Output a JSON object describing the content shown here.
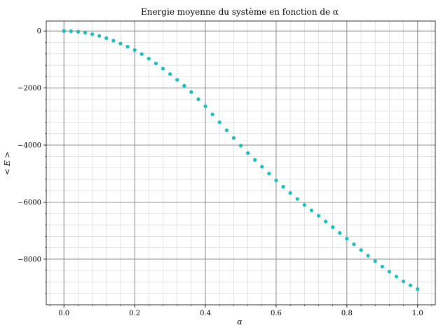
{
  "chart_data": {
    "type": "scatter",
    "title": "Energie moyenne du système en fonction de α",
    "xlabel": "α",
    "ylabel": "< E >",
    "xlim": [
      -0.05,
      1.05
    ],
    "ylim": [
      -9600,
      350
    ],
    "x_ticks": [
      0.0,
      0.2,
      0.4,
      0.6,
      0.8,
      1.0
    ],
    "x_tick_labels": [
      "0.0",
      "0.2",
      "0.4",
      "0.6",
      "0.8",
      "1.0"
    ],
    "y_ticks": [
      0,
      -2000,
      -4000,
      -6000,
      -8000
    ],
    "y_tick_labels": [
      "0",
      "−2000",
      "−4000",
      "−6000",
      "−8000"
    ],
    "grid": "major and minor",
    "marker_color": "#17bebb",
    "series": [
      {
        "x": [
          0.0,
          0.02,
          0.04,
          0.06,
          0.08,
          0.1,
          0.12,
          0.14,
          0.16,
          0.18,
          0.2,
          0.22,
          0.24,
          0.26,
          0.28,
          0.3,
          0.32,
          0.34,
          0.36,
          0.38,
          0.4,
          0.42,
          0.44,
          0.46,
          0.48,
          0.5,
          0.52,
          0.54,
          0.56,
          0.58,
          0.6,
          0.62,
          0.64,
          0.66,
          0.68,
          0.7,
          0.72,
          0.74,
          0.76,
          0.78,
          0.8,
          0.82,
          0.84,
          0.86,
          0.88,
          0.9,
          0.92,
          0.94,
          0.96,
          0.98,
          1.0
        ],
        "y": [
          0,
          -5,
          -25,
          -60,
          -110,
          -170,
          -250,
          -340,
          -440,
          -550,
          -670,
          -810,
          -970,
          -1140,
          -1320,
          -1510,
          -1710,
          -1920,
          -2140,
          -2390,
          -2640,
          -2920,
          -3200,
          -3480,
          -3750,
          -4020,
          -4280,
          -4520,
          -4760,
          -5000,
          -5240,
          -5460,
          -5680,
          -5890,
          -6100,
          -6290,
          -6480,
          -6680,
          -6880,
          -7080,
          -7280,
          -7480,
          -7680,
          -7880,
          -8070,
          -8260,
          -8440,
          -8610,
          -8780,
          -8920,
          -9050
        ]
      }
    ]
  }
}
